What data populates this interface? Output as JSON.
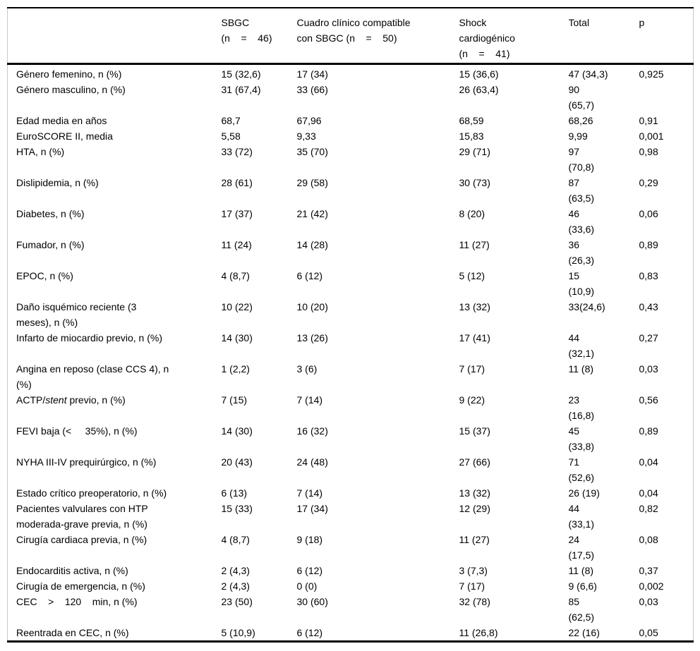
{
  "style": {
    "text_color": "#000000",
    "background_color": "#ffffff",
    "rule_color": "#000000",
    "side_border_color": "#c9c9c9"
  },
  "table": {
    "columns": [
      {
        "key": "label",
        "label": ""
      },
      {
        "key": "sbgc",
        "label": "SBGC\n(n    =    46)"
      },
      {
        "key": "cuadro",
        "label": "Cuadro clínico compatible\ncon SBGC (n    =    50)"
      },
      {
        "key": "shock",
        "label": "Shock\ncardiogénico\n(n    =    41)"
      },
      {
        "key": "total",
        "label": "Total"
      },
      {
        "key": "p",
        "label": "p"
      }
    ],
    "rows": [
      {
        "label": "Género femenino, n (%)",
        "sbgc": "15 (32,6)",
        "cuadro": "17 (34)",
        "shock": "15 (36,6)",
        "total": "47 (34,3)",
        "p": "0,925"
      },
      {
        "label": "Género masculino, n (%)",
        "sbgc": "31 (67,4)",
        "cuadro": "33 (66)",
        "shock": "26 (63,4)",
        "total": "90\n(65,7)",
        "p": ""
      },
      {
        "label": "Edad media en años",
        "sbgc": "68,7",
        "cuadro": "67,96",
        "shock": "68,59",
        "total": "68,26",
        "p": "0,91"
      },
      {
        "label": "EuroSCORE II, media",
        "sbgc": "5,58",
        "cuadro": "9,33",
        "shock": "15,83",
        "total": "9,99",
        "p": "0,001"
      },
      {
        "label": "HTA, n (%)",
        "sbgc": "33 (72)",
        "cuadro": "35 (70)",
        "shock": "29 (71)",
        "total": "97\n(70,8)",
        "p": "0,98"
      },
      {
        "label": "Dislipidemia, n (%)",
        "sbgc": "28 (61)",
        "cuadro": "29 (58)",
        "shock": "30 (73)",
        "total": "87\n(63,5)",
        "p": "0,29"
      },
      {
        "label": "Diabetes, n (%)",
        "sbgc": "17 (37)",
        "cuadro": "21 (42)",
        "shock": "8 (20)",
        "total": "46\n(33,6)",
        "p": "0,06"
      },
      {
        "label": "Fumador, n (%)",
        "sbgc": "11 (24)",
        "cuadro": "14 (28)",
        "shock": "11 (27)",
        "total": "36\n(26,3)",
        "p": "0,89"
      },
      {
        "label": "EPOC, n (%)",
        "sbgc": "4 (8,7)",
        "cuadro": "6 (12)",
        "shock": "5 (12)",
        "total": "15\n(10,9)",
        "p": "0,83"
      },
      {
        "label": "Daño isquémico reciente (3\nmeses), n (%)",
        "sbgc": "10 (22)",
        "cuadro": "10 (20)",
        "shock": "13 (32)",
        "total": "33(24,6)",
        "p": "0,43"
      },
      {
        "label": "Infarto de miocardio previo, n (%)",
        "sbgc": "14 (30)",
        "cuadro": "13 (26)",
        "shock": "17 (41)",
        "total": "44\n(32,1)",
        "p": "0,27"
      },
      {
        "label": "Angina en reposo (clase CCS 4), n\n(%)",
        "sbgc": "1 (2,2)",
        "cuadro": "3 (6)",
        "shock": "7 (17)",
        "total": "11 (8)",
        "p": "0,03"
      },
      {
        "label": [
          {
            "text": "ACTP/"
          },
          {
            "text": "stent",
            "italic": true
          },
          {
            "text": " previo, n (%)"
          }
        ],
        "sbgc": "7 (15)",
        "cuadro": "7 (14)",
        "shock": "9 (22)",
        "total": "23\n(16,8)",
        "p": "0,56"
      },
      {
        "label": "FEVI baja (<     35%), n (%)",
        "sbgc": "14 (30)",
        "cuadro": "16 (32)",
        "shock": "15 (37)",
        "total": "45\n(33,8)",
        "p": "0,89"
      },
      {
        "label": "NYHA III-IV prequirúrgico, n (%)",
        "sbgc": "20 (43)",
        "cuadro": "24 (48)",
        "shock": "27 (66)",
        "total": "71\n(52,6)",
        "p": "0,04"
      },
      {
        "label": "Estado crítico preoperatorio, n (%)",
        "sbgc": "6 (13)",
        "cuadro": "7 (14)",
        "shock": "13 (32)",
        "total": "26 (19)",
        "p": "0,04"
      },
      {
        "label": "Pacientes valvulares con HTP\nmoderada-grave previa, n (%)",
        "sbgc": "15 (33)",
        "cuadro": "17 (34)",
        "shock": "12 (29)",
        "total": "44\n(33,1)",
        "p": "0,82"
      },
      {
        "label": "Cirugía cardiaca previa, n (%)",
        "sbgc": "4 (8,7)",
        "cuadro": "9 (18)",
        "shock": "11 (27)",
        "total": "24\n(17,5)",
        "p": "0,08"
      },
      {
        "label": "Endocarditis activa, n (%)",
        "sbgc": "2 (4,3)",
        "cuadro": "6 (12)",
        "shock": "3 (7,3)",
        "total": "11 (8)",
        "p": "0,37"
      },
      {
        "label": "Cirugía de emergencia, n (%)",
        "sbgc": "2 (4,3)",
        "cuadro": "0 (0)",
        "shock": "7 (17)",
        "total": "9 (6,6)",
        "p": "0,002"
      },
      {
        "label": "CEC    >    120    min, n (%)",
        "sbgc": "23 (50)",
        "cuadro": "30 (60)",
        "shock": "32 (78)",
        "total": "85\n(62,5)",
        "p": "0,03"
      },
      {
        "label": "Reentrada en CEC, n (%)",
        "sbgc": "5 (10,9)",
        "cuadro": "6 (12)",
        "shock": "11 (26,8)",
        "total": "22 (16)",
        "p": "0,05"
      }
    ]
  }
}
